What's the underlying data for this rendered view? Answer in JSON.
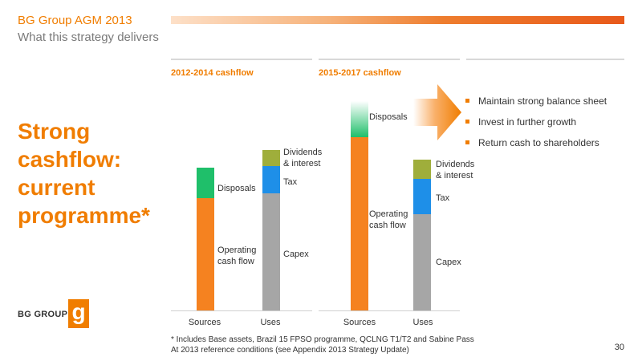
{
  "header": {
    "title": "BG Group AGM 2013",
    "subtitle": "What this strategy delivers"
  },
  "headline": "Strong cashflow: current programme*",
  "columns": {
    "left_heading": "2012-2014 cashflow",
    "right_heading": "2015-2017 cashflow"
  },
  "colors": {
    "accent": "#f07d00",
    "operating": "#f58220",
    "disposals": "#1fbf6a",
    "dividends": "#9fae3b",
    "tax": "#1e8fe8",
    "capex": "#a6a6a6"
  },
  "chart_data": [
    {
      "type": "bar",
      "title": "2012-2014 cashflow",
      "categories": [
        "Sources",
        "Uses"
      ],
      "stacks": [
        {
          "category": "Sources",
          "segments": [
            {
              "name": "Operating cash flow",
              "value": 140
            },
            {
              "name": "Disposals",
              "value": 38
            }
          ]
        },
        {
          "category": "Uses",
          "segments": [
            {
              "name": "Capex",
              "value": 146
            },
            {
              "name": "Tax",
              "value": 34
            },
            {
              "name": "Dividends & interest",
              "value": 20
            }
          ]
        }
      ],
      "ylim": [
        0,
        280
      ]
    },
    {
      "type": "bar",
      "title": "2015-2017 cashflow",
      "categories": [
        "Sources",
        "Uses"
      ],
      "stacks": [
        {
          "category": "Sources",
          "segments": [
            {
              "name": "Operating cash flow",
              "value": 216
            },
            {
              "name": "Disposals",
              "value": 45
            }
          ]
        },
        {
          "category": "Uses",
          "segments": [
            {
              "name": "Capex",
              "value": 120
            },
            {
              "name": "Tax",
              "value": 44
            },
            {
              "name": "Dividends & interest",
              "value": 24
            }
          ]
        }
      ],
      "ylim": [
        0,
        280
      ]
    }
  ],
  "labels": {
    "disposals": "Disposals",
    "operating_1": "Operating",
    "operating_2": "cash flow",
    "dividends_1": "Dividends",
    "dividends_2": "& interest",
    "tax": "Tax",
    "capex": "Capex",
    "sources": "Sources",
    "uses": "Uses"
  },
  "bullets": [
    "Maintain strong balance sheet",
    "Invest in further growth",
    "Return cash to shareholders"
  ],
  "logo": {
    "text": "BG GROUP",
    "mark": "g"
  },
  "footnote": {
    "line1": "* Includes Base assets, Brazil 15 FPSO programme, QCLNG T1/T2 and Sabine Pass",
    "line2": "At 2013 reference conditions (see Appendix 2013 Strategy Update)"
  },
  "page_number": "30"
}
